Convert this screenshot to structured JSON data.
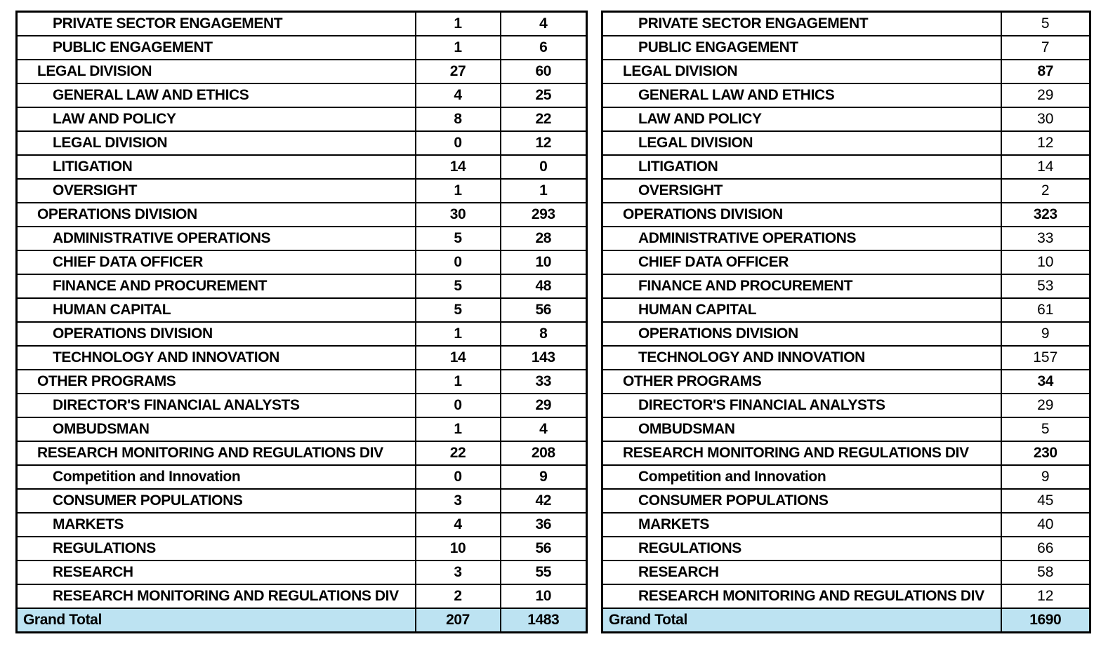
{
  "colors": {
    "grand_total_fill": "#BDE3F2",
    "border": "#000000",
    "text": "#000000",
    "background": "#FFFFFF"
  },
  "chart_data": [
    {
      "type": "table",
      "name": "office-counts-two-value-columns",
      "value_columns": 2,
      "all_values_bold": true,
      "rows": [
        {
          "label": "PRIVATE SECTOR ENGAGEMENT",
          "level": "sub",
          "values": [
            "1",
            "4"
          ]
        },
        {
          "label": "PUBLIC ENGAGEMENT",
          "level": "sub",
          "values": [
            "1",
            "6"
          ]
        },
        {
          "label": "LEGAL DIVISION",
          "level": "division",
          "values": [
            "27",
            "60"
          ]
        },
        {
          "label": "GENERAL LAW AND ETHICS",
          "level": "sub",
          "values": [
            "4",
            "25"
          ]
        },
        {
          "label": "LAW AND POLICY",
          "level": "sub",
          "values": [
            "8",
            "22"
          ]
        },
        {
          "label": "LEGAL DIVISION",
          "level": "sub",
          "values": [
            "0",
            "12"
          ]
        },
        {
          "label": "LITIGATION",
          "level": "sub",
          "values": [
            "14",
            "0"
          ]
        },
        {
          "label": "OVERSIGHT",
          "level": "sub",
          "values": [
            "1",
            "1"
          ]
        },
        {
          "label": "OPERATIONS DIVISION",
          "level": "division",
          "values": [
            "30",
            "293"
          ]
        },
        {
          "label": "ADMINISTRATIVE OPERATIONS",
          "level": "sub",
          "values": [
            "5",
            "28"
          ]
        },
        {
          "label": "CHIEF DATA OFFICER",
          "level": "sub",
          "values": [
            "0",
            "10"
          ]
        },
        {
          "label": "FINANCE AND PROCUREMENT",
          "level": "sub",
          "values": [
            "5",
            "48"
          ]
        },
        {
          "label": "HUMAN CAPITAL",
          "level": "sub",
          "values": [
            "5",
            "56"
          ]
        },
        {
          "label": "OPERATIONS DIVISION",
          "level": "sub",
          "values": [
            "1",
            "8"
          ]
        },
        {
          "label": "TECHNOLOGY AND INNOVATION",
          "level": "sub",
          "values": [
            "14",
            "143"
          ]
        },
        {
          "label": "OTHER PROGRAMS",
          "level": "division",
          "values": [
            "1",
            "33"
          ]
        },
        {
          "label": "DIRECTOR'S FINANCIAL ANALYSTS",
          "level": "sub",
          "values": [
            "0",
            "29"
          ]
        },
        {
          "label": "OMBUDSMAN",
          "level": "sub",
          "values": [
            "1",
            "4"
          ]
        },
        {
          "label": "RESEARCH MONITORING AND REGULATIONS DIV",
          "level": "division",
          "values": [
            "22",
            "208"
          ]
        },
        {
          "label": "Competition and Innovation",
          "level": "sub",
          "values": [
            "0",
            "9"
          ]
        },
        {
          "label": "CONSUMER POPULATIONS",
          "level": "sub",
          "values": [
            "3",
            "42"
          ]
        },
        {
          "label": "MARKETS",
          "level": "sub",
          "values": [
            "4",
            "36"
          ]
        },
        {
          "label": "REGULATIONS",
          "level": "sub",
          "values": [
            "10",
            "56"
          ]
        },
        {
          "label": "RESEARCH",
          "level": "sub",
          "values": [
            "3",
            "55"
          ]
        },
        {
          "label": "RESEARCH MONITORING AND REGULATIONS DIV",
          "level": "sub",
          "values": [
            "2",
            "10"
          ]
        },
        {
          "label": "Grand Total",
          "level": "grand",
          "values": [
            "207",
            "1483"
          ]
        }
      ]
    },
    {
      "type": "table",
      "name": "office-counts-total-column",
      "value_columns": 1,
      "all_values_bold": false,
      "rows": [
        {
          "label": "PRIVATE SECTOR ENGAGEMENT",
          "level": "sub",
          "values": [
            "5"
          ]
        },
        {
          "label": "PUBLIC ENGAGEMENT",
          "level": "sub",
          "values": [
            "7"
          ]
        },
        {
          "label": "LEGAL DIVISION",
          "level": "division",
          "values": [
            "87"
          ]
        },
        {
          "label": "GENERAL LAW AND ETHICS",
          "level": "sub",
          "values": [
            "29"
          ]
        },
        {
          "label": "LAW AND POLICY",
          "level": "sub",
          "values": [
            "30"
          ]
        },
        {
          "label": "LEGAL DIVISION",
          "level": "sub",
          "values": [
            "12"
          ]
        },
        {
          "label": "LITIGATION",
          "level": "sub",
          "values": [
            "14"
          ]
        },
        {
          "label": "OVERSIGHT",
          "level": "sub",
          "values": [
            "2"
          ]
        },
        {
          "label": "OPERATIONS DIVISION",
          "level": "division",
          "values": [
            "323"
          ]
        },
        {
          "label": "ADMINISTRATIVE OPERATIONS",
          "level": "sub",
          "values": [
            "33"
          ]
        },
        {
          "label": "CHIEF DATA OFFICER",
          "level": "sub",
          "values": [
            "10"
          ]
        },
        {
          "label": "FINANCE AND PROCUREMENT",
          "level": "sub",
          "values": [
            "53"
          ]
        },
        {
          "label": "HUMAN CAPITAL",
          "level": "sub",
          "values": [
            "61"
          ]
        },
        {
          "label": "OPERATIONS DIVISION",
          "level": "sub",
          "values": [
            "9"
          ]
        },
        {
          "label": "TECHNOLOGY AND INNOVATION",
          "level": "sub",
          "values": [
            "157"
          ]
        },
        {
          "label": "OTHER PROGRAMS",
          "level": "division",
          "values": [
            "34"
          ]
        },
        {
          "label": "DIRECTOR'S FINANCIAL ANALYSTS",
          "level": "sub",
          "values": [
            "29"
          ]
        },
        {
          "label": "OMBUDSMAN",
          "level": "sub",
          "values": [
            "5"
          ]
        },
        {
          "label": "RESEARCH MONITORING AND REGULATIONS DIV",
          "level": "division",
          "values": [
            "230"
          ]
        },
        {
          "label": "Competition and Innovation",
          "level": "sub",
          "values": [
            "9"
          ]
        },
        {
          "label": "CONSUMER POPULATIONS",
          "level": "sub",
          "values": [
            "45"
          ]
        },
        {
          "label": "MARKETS",
          "level": "sub",
          "values": [
            "40"
          ]
        },
        {
          "label": "REGULATIONS",
          "level": "sub",
          "values": [
            "66"
          ]
        },
        {
          "label": "RESEARCH",
          "level": "sub",
          "values": [
            "58"
          ]
        },
        {
          "label": "RESEARCH MONITORING AND REGULATIONS DIV",
          "level": "sub",
          "values": [
            "12"
          ]
        },
        {
          "label": "Grand Total",
          "level": "grand",
          "values": [
            "1690"
          ]
        }
      ]
    }
  ]
}
